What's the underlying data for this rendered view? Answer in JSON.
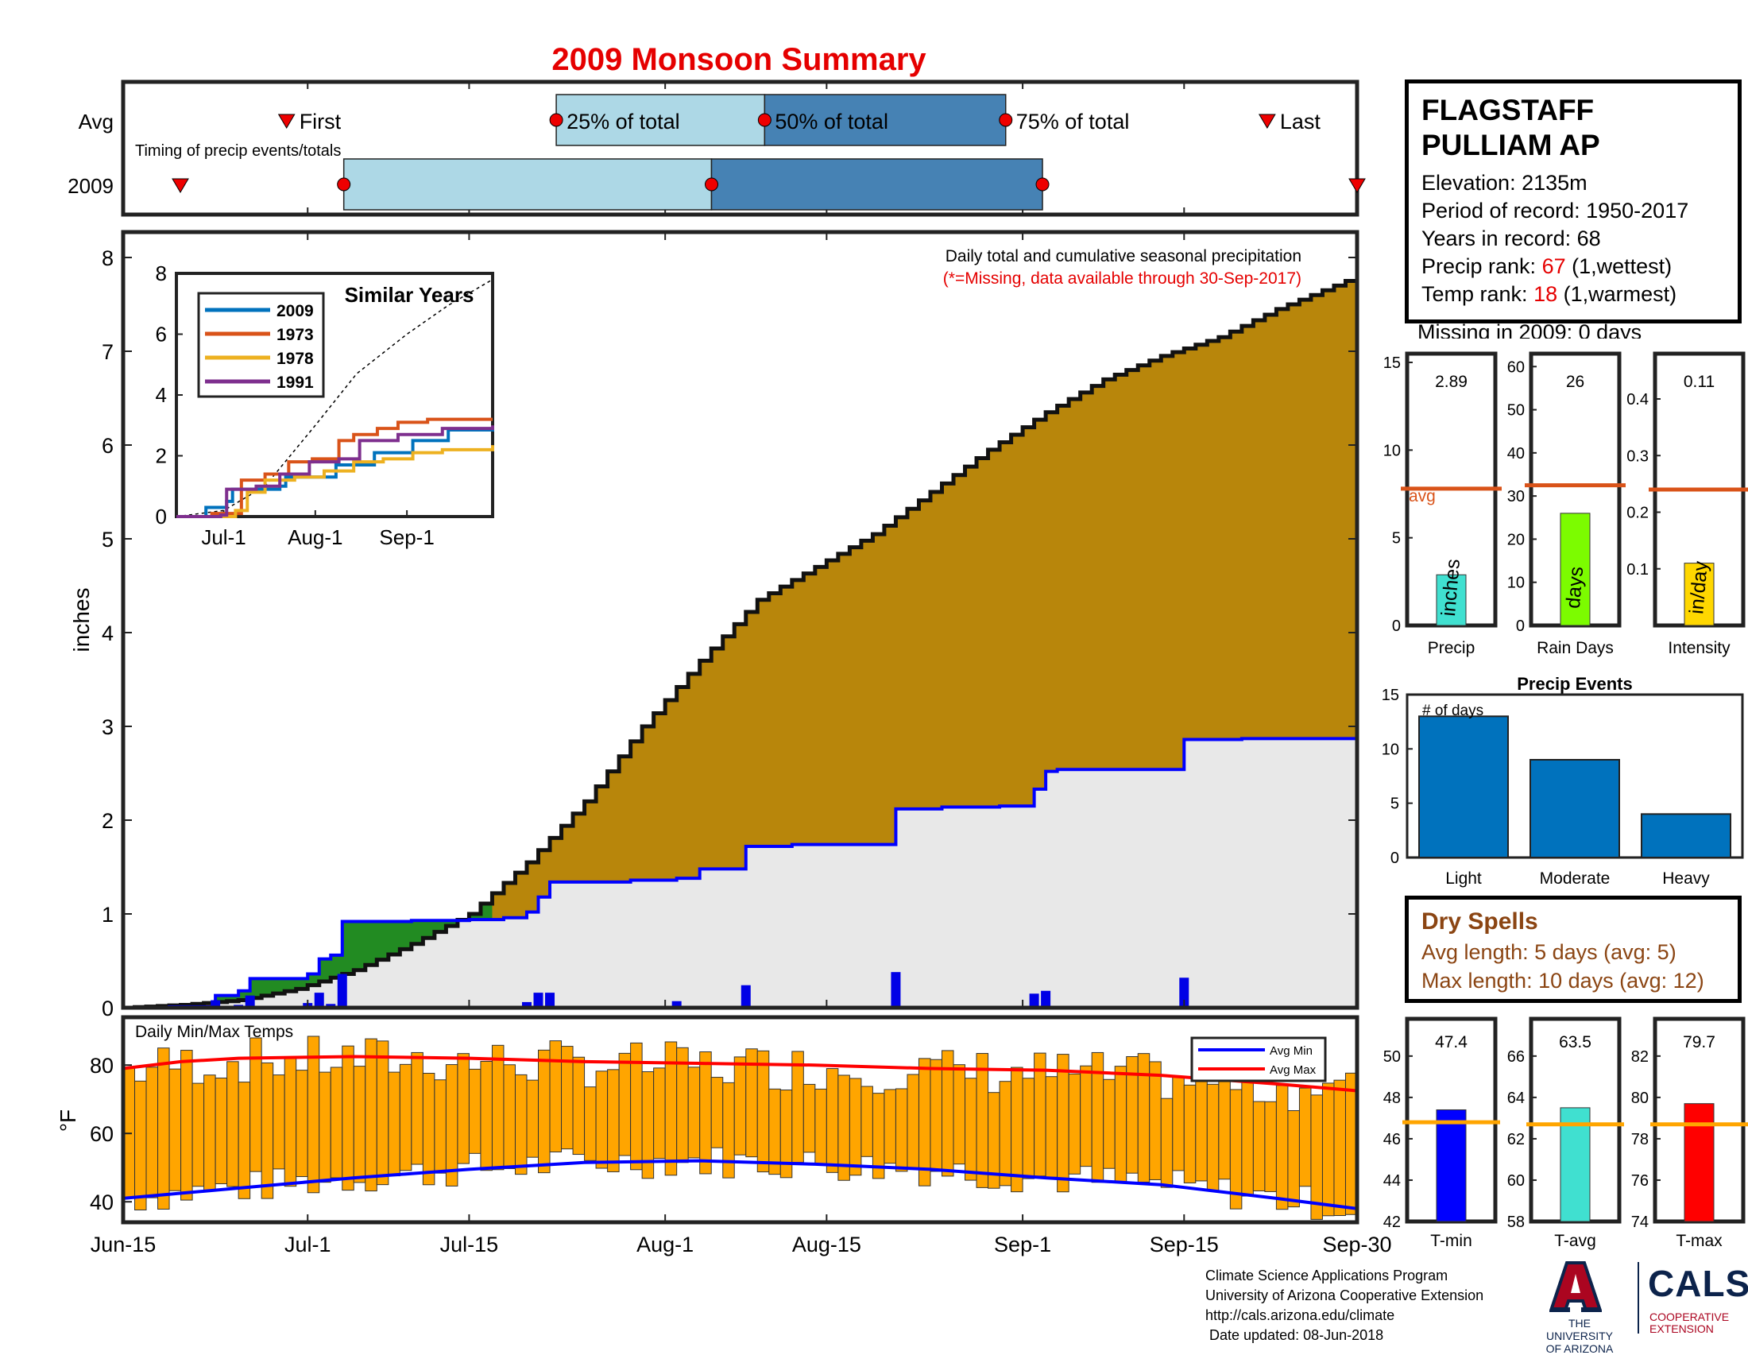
{
  "title": "2009 Monsoon Summary",
  "timing": {
    "caption": "Timing of precip events/totals",
    "row_labels": [
      "Avg",
      "2009"
    ],
    "labels": {
      "first": "First",
      "q25": "25% of total",
      "q50": "50% of total",
      "q75": "75% of total",
      "last": "Last"
    },
    "avg_days": {
      "first": 40,
      "q25": 106,
      "q50": 157,
      "q75": 216,
      "last": 280
    },
    "y2009_days": {
      "first": 14,
      "q25": 54,
      "q50": 144,
      "q75": 225,
      "last": 302
    }
  },
  "station": {
    "name_line1": "FLAGSTAFF",
    "name_line2": "PULLIAM AP",
    "elevation": "Elevation: 2135m",
    "period": "Period of record: 1950-2017",
    "years": "Years in record: 68",
    "precip_rank_prefix": "Precip rank: ",
    "precip_rank": "67",
    "precip_rank_suffix": " (1,wettest)",
    "temp_rank_prefix": "Temp rank: ",
    "temp_rank": "18",
    "temp_rank_suffix": " (1,warmest)",
    "missing": "Missing in 2009: 0 days"
  },
  "main_chart": {
    "annotation_line1": "Daily total and cumulative seasonal precipitation",
    "annotation_line2": "(*=Missing, data available through 30-Sep-2017)",
    "ylabel": "inches",
    "yticks": [
      0,
      1,
      2,
      3,
      4,
      5,
      6,
      7,
      8
    ],
    "xticks": [
      "Jun-15",
      "Jul-1",
      "Jul-15",
      "Aug-1",
      "Aug-15",
      "Sep-1",
      "Sep-15",
      "Sep-30"
    ],
    "xtick_days": [
      0,
      16,
      30,
      47,
      61,
      78,
      92,
      107
    ]
  },
  "inset": {
    "title": "Similar Years",
    "yticks": [
      0,
      2,
      4,
      6,
      8
    ],
    "xticks": [
      "Jul-1",
      "Aug-1",
      "Sep-1"
    ],
    "legend": [
      "2009",
      "1973",
      "1978",
      "1991"
    ]
  },
  "temps": {
    "caption": "Daily Min/Max Temps",
    "ylabel": "°F",
    "yticks": [
      40,
      60,
      80
    ],
    "legend_min": "Avg Min",
    "legend_max": "Avg Max"
  },
  "bars_top": [
    {
      "label": "Precip",
      "value": 2.89,
      "value_text": "2.89",
      "avg": 7.8,
      "avg_label": "avg",
      "unit": "inches",
      "yticks": [
        0,
        5,
        10,
        15
      ],
      "ymax": 15.5,
      "color": "#40e0d0"
    },
    {
      "label": "Rain Days",
      "value": 26,
      "value_text": "26",
      "avg": 32.5,
      "avg_label": "",
      "unit": "days",
      "yticks": [
        0,
        10,
        20,
        30,
        40,
        50,
        60
      ],
      "ymax": 63,
      "color": "#7cfc00"
    },
    {
      "label": "Intensity",
      "value": 0.11,
      "value_text": "0.11",
      "avg": 0.24,
      "avg_label": "",
      "unit": "in/day",
      "yticks": [
        0.1,
        0.2,
        0.3,
        0.4
      ],
      "ymax": 0.48,
      "color": "#ffd700"
    }
  ],
  "precip_events": {
    "title": "Precip Events",
    "ylabel": "# of days",
    "categories": [
      "Light",
      "Moderate",
      "Heavy"
    ],
    "values": [
      13,
      9,
      4
    ],
    "yticks": [
      0,
      5,
      10,
      15
    ]
  },
  "dry_spells": {
    "title": "Dry Spells",
    "avg_line": "Avg length: 5 days (avg: 5)",
    "max_line": "Max length: 10 days (avg: 12)"
  },
  "bars_temp": [
    {
      "label": "T-min",
      "value": 47.4,
      "value_text": "47.4",
      "avg": 46.8,
      "yticks": [
        42,
        44,
        46,
        48,
        50
      ],
      "ymin": 42,
      "ymax": 51.8,
      "color": "#0000ff"
    },
    {
      "label": "T-avg",
      "value": 63.5,
      "value_text": "63.5",
      "avg": 62.7,
      "yticks": [
        58,
        60,
        62,
        64,
        66
      ],
      "ymin": 58,
      "ymax": 67.8,
      "color": "#40e0d0"
    },
    {
      "label": "T-max",
      "value": 79.7,
      "value_text": "79.7",
      "avg": 78.7,
      "yticks": [
        74,
        76,
        78,
        80,
        82
      ],
      "ymin": 74,
      "ymax": 83.8,
      "color": "#ff0000"
    }
  ],
  "credits": {
    "line1": "Climate Science Applications Program",
    "line2": "University of Arizona Cooperative Extension",
    "line3": "http://cals.arizona.edu/climate",
    "line4": " Date updated: 08-Jun-2018"
  },
  "logos": {
    "ua_line1": "THE UNIVERSITY",
    "ua_line2": "OF ARIZONA",
    "cals": "CALS",
    "cals_sub1": "COOPERATIVE",
    "cals_sub2": "EXTENSION"
  },
  "chart_data": [
    {
      "type": "area",
      "title": "Daily total and cumulative seasonal precipitation",
      "ylabel": "inches",
      "xlim": [
        "Jun-15",
        "Sep-30"
      ],
      "ylim": [
        0,
        8.2
      ],
      "series": [
        {
          "name": "Cumulative average",
          "x": [
            0,
            5,
            10,
            15,
            20,
            25,
            30,
            35,
            40,
            45,
            50,
            55,
            60,
            65,
            70,
            75,
            80,
            85,
            90,
            95,
            100,
            104,
            107
          ],
          "values": [
            0,
            0.03,
            0.08,
            0.2,
            0.4,
            0.68,
            1.0,
            1.55,
            2.2,
            3.0,
            3.7,
            4.35,
            4.7,
            5.05,
            5.5,
            5.95,
            6.35,
            6.7,
            6.95,
            7.15,
            7.45,
            7.65,
            7.8
          ]
        },
        {
          "name": "Cumulative 2009",
          "x": [
            0,
            4,
            8,
            10,
            11,
            16,
            17,
            18,
            19,
            25,
            29,
            30,
            33,
            35,
            36,
            37,
            44,
            48,
            50,
            53,
            54,
            57,
            58,
            60,
            67,
            70,
            71,
            76,
            79,
            80,
            81,
            84,
            87,
            90,
            92,
            97,
            107
          ],
          "values": [
            0,
            0.01,
            0.13,
            0.18,
            0.31,
            0.36,
            0.52,
            0.56,
            0.92,
            0.93,
            0.93,
            0.94,
            0.96,
            1.02,
            1.18,
            1.34,
            1.36,
            1.38,
            1.48,
            1.48,
            1.72,
            1.72,
            1.74,
            1.74,
            2.12,
            2.12,
            2.14,
            2.15,
            2.33,
            2.52,
            2.54,
            2.54,
            2.54,
            2.54,
            2.86,
            2.87,
            2.88
          ]
        },
        {
          "name": "Daily precip 2009",
          "x": [
            8,
            10,
            11,
            16,
            17,
            18,
            19,
            22,
            30,
            33,
            35,
            36,
            37,
            48,
            54,
            67,
            76,
            79,
            80,
            92
          ],
          "values": [
            0.08,
            0.03,
            0.13,
            0.05,
            0.16,
            0.04,
            0.36,
            0.01,
            0.01,
            0.02,
            0.06,
            0.16,
            0.16,
            0.07,
            0.24,
            0.38,
            0.01,
            0.15,
            0.18,
            0.32
          ]
        }
      ]
    },
    {
      "type": "line",
      "title": "Similar Years",
      "ylim": [
        0,
        8
      ],
      "series": [
        {
          "name": "2009",
          "x": [
            0,
            10,
            17,
            19,
            35,
            37,
            54,
            67,
            80,
            92,
            107
          ],
          "values": [
            0,
            0.3,
            0.5,
            0.9,
            1.0,
            1.3,
            1.7,
            2.1,
            2.5,
            2.85,
            2.88
          ]
        },
        {
          "name": "1973",
          "x": [
            0,
            12,
            22,
            30,
            38,
            46,
            55,
            60,
            68,
            75,
            85,
            107
          ],
          "values": [
            0,
            0.1,
            1.2,
            1.4,
            1.8,
            1.9,
            2.5,
            2.7,
            2.9,
            3.1,
            3.2,
            3.2
          ]
        },
        {
          "name": "1978",
          "x": [
            0,
            20,
            24,
            30,
            40,
            50,
            60,
            70,
            80,
            90,
            107
          ],
          "values": [
            0,
            0.2,
            0.8,
            1.2,
            1.3,
            1.5,
            1.8,
            1.9,
            2.1,
            2.2,
            2.35
          ]
        },
        {
          "name": "1991",
          "x": [
            0,
            15,
            17,
            27,
            35,
            45,
            55,
            62,
            75,
            90,
            107
          ],
          "values": [
            0,
            0.05,
            0.9,
            1.0,
            1.4,
            1.8,
            1.9,
            2.5,
            2.7,
            2.9,
            3.0
          ]
        },
        {
          "name": "",
          "x": [
            0,
            16,
            30,
            47,
            61,
            78,
            92,
            107
          ],
          "values": [
            0,
            0.2,
            1.0,
            3.0,
            4.7,
            6.0,
            6.95,
            7.8
          ]
        }
      ]
    },
    {
      "type": "bar",
      "title": "Daily Min/Max Temps",
      "ylabel": "°F",
      "ylim": [
        34,
        94
      ],
      "series": [
        {
          "name": "Avg Min",
          "x": [
            0,
            10,
            20,
            30,
            40,
            50,
            60,
            70,
            80,
            90,
            100,
            107
          ],
          "values": [
            41,
            44,
            47,
            49.5,
            51.5,
            52,
            51,
            49.5,
            47,
            45,
            41,
            38
          ]
        },
        {
          "name": "Avg Max",
          "x": [
            0,
            5,
            10,
            20,
            30,
            40,
            50,
            60,
            70,
            80,
            90,
            100,
            107
          ],
          "values": [
            79,
            81,
            82,
            82.5,
            82,
            81,
            80.5,
            80,
            79,
            78.5,
            77,
            74.5,
            72.5
          ]
        }
      ]
    },
    {
      "type": "bar",
      "title": "Precip Events",
      "categories": [
        "Light",
        "Moderate",
        "Heavy"
      ],
      "values": [
        13,
        9,
        4
      ],
      "ylim": [
        0,
        15
      ]
    }
  ]
}
